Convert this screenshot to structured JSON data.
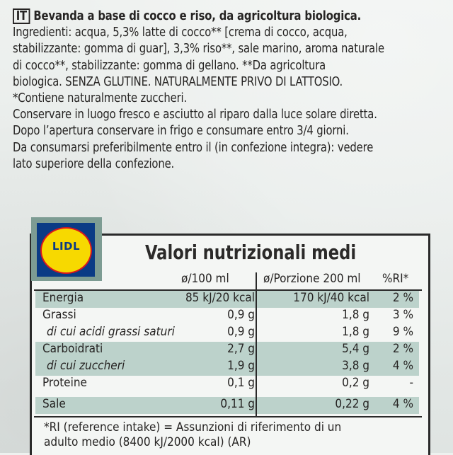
{
  "label": {
    "lang_code": "IT",
    "product_title": "Bevanda a base di cocco e riso, da agricoltura biologica.",
    "ingredients_lines": [
      "Ingredienti: acqua, 5,3% latte di cocco** [crema di cocco, acqua,",
      "stabilizzante: gomma di guar], 3,3% riso**, sale marino, aroma naturale",
      "di cocco**, stabilizzante: gomma di gellano. **Da agricoltura",
      "biologica. SENZA GLUTINE. NATURALMENTE PRIVO DI LATTOSIO.",
      "*Contiene naturalmente zuccheri.",
      "Conservare in luogo fresco e asciutto al riparo dalla luce solare diretta.",
      "Dopo l’apertura conservare in frigo e consumare entro 3/4 giorni.",
      "Da consumarsi preferibilmente entro il (in confezione integra): vedere",
      "lato superiore della confezione."
    ]
  },
  "brand": {
    "logo_text": "LIDL",
    "colors": {
      "blue": "#0a3b85",
      "yellow": "#f7d900",
      "red": "#d9171e"
    }
  },
  "nutrition": {
    "title": "Valori nutrizionali medi",
    "headers": {
      "per100": "ø/100 ml",
      "portion": "ø/Porzione 200 ml",
      "ri": "%RI*"
    },
    "rows": [
      {
        "name": "Energia",
        "per100": "85 kJ/20 kcal",
        "portion": "170 kJ/40 kcal",
        "ri": "2 %",
        "shaded": true,
        "sub": false
      },
      {
        "name": "Grassi",
        "per100": "0,9 g",
        "portion": "1,8 g",
        "ri": "3 %",
        "shaded": false,
        "sub": false
      },
      {
        "name": "di cui acidi grassi saturi",
        "per100": "0,9 g",
        "portion": "1,8 g",
        "ri": "9 %",
        "shaded": false,
        "sub": true
      },
      {
        "name": "Carboidrati",
        "per100": "2,7 g",
        "portion": "5,4 g",
        "ri": "2 %",
        "shaded": true,
        "sub": false
      },
      {
        "name": "di cui zuccheri",
        "per100": "1,9 g",
        "portion": "3,8 g",
        "ri": "4 %",
        "shaded": true,
        "sub": true
      },
      {
        "name": "Proteine",
        "per100": "0,1 g",
        "portion": "0,2 g",
        "ri": "-",
        "shaded": false,
        "sub": false
      },
      {
        "name": "Sale",
        "per100": "0,11 g",
        "portion": "0,22 g",
        "ri": "4 %",
        "shaded": true,
        "sub": false
      }
    ],
    "footnote_lines": [
      "*RI (reference intake) = Assunzioni di riferimento di un",
      "adulto medio (8400 kJ/2000 kcal) (AR)"
    ]
  }
}
